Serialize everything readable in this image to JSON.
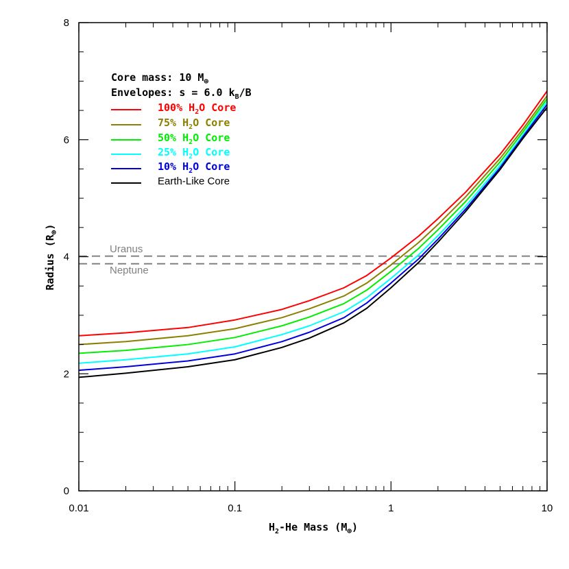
{
  "chart_data": {
    "type": "line",
    "xlabel": "H2-He Mass (M⊕)",
    "ylabel": "Radius (R⊕)",
    "xscale": "log",
    "xlim": [
      0.01,
      10
    ],
    "ylim": [
      0,
      8
    ],
    "xticks": [
      {
        "value": 0.01,
        "label": "0.01"
      },
      {
        "value": 0.1,
        "label": "0.1"
      },
      {
        "value": 1,
        "label": "1"
      },
      {
        "value": 10,
        "label": "10"
      }
    ],
    "yticks": [
      {
        "value": 0,
        "label": "0"
      },
      {
        "value": 2,
        "label": "2"
      },
      {
        "value": 4,
        "label": "4"
      },
      {
        "value": 6,
        "label": "6"
      },
      {
        "value": 8,
        "label": "8"
      }
    ],
    "annotations": {
      "core_mass": "Core mass: 10 M⊕",
      "envelopes": "Envelopes: s = 6.0 kB/B"
    },
    "legend_placement": "top-left",
    "x": [
      0.01,
      0.02,
      0.05,
      0.1,
      0.2,
      0.3,
      0.5,
      0.7,
      1,
      1.5,
      2,
      3,
      5,
      7,
      10
    ],
    "series": [
      {
        "name": "100% H2O Core",
        "color": "#ff0000",
        "values": [
          2.65,
          2.7,
          2.79,
          2.92,
          3.1,
          3.25,
          3.47,
          3.68,
          3.98,
          4.35,
          4.65,
          5.1,
          5.75,
          6.25,
          6.83
        ]
      },
      {
        "name": "75% H2O Core",
        "color": "#8b8000",
        "values": [
          2.5,
          2.55,
          2.65,
          2.77,
          2.96,
          3.11,
          3.33,
          3.55,
          3.86,
          4.24,
          4.55,
          5.02,
          5.68,
          6.18,
          6.75
        ]
      },
      {
        "name": "50% H2O Core",
        "color": "#00ee00",
        "values": [
          2.35,
          2.4,
          2.5,
          2.62,
          2.82,
          2.97,
          3.2,
          3.43,
          3.75,
          4.14,
          4.46,
          4.94,
          5.62,
          6.13,
          6.7
        ]
      },
      {
        "name": "25% H2O Core",
        "color": "#00ffff",
        "values": [
          2.18,
          2.24,
          2.34,
          2.46,
          2.67,
          2.82,
          3.06,
          3.3,
          3.63,
          4.03,
          4.36,
          4.86,
          5.56,
          6.08,
          6.65
        ]
      },
      {
        "name": "10% H2O Core",
        "color": "#0000dd",
        "values": [
          2.06,
          2.12,
          2.22,
          2.34,
          2.55,
          2.71,
          2.96,
          3.21,
          3.55,
          3.96,
          4.3,
          4.81,
          5.52,
          6.05,
          6.6
        ]
      },
      {
        "name": "Earth-Like Core",
        "color": "#000000",
        "values": [
          1.94,
          2.01,
          2.12,
          2.24,
          2.45,
          2.61,
          2.87,
          3.12,
          3.47,
          3.9,
          4.25,
          4.77,
          5.49,
          6.02,
          6.55
        ]
      }
    ],
    "reference_lines": [
      {
        "name": "Uranus",
        "value": 4.01,
        "color": "#808080"
      },
      {
        "name": "Neptune",
        "value": 3.88,
        "color": "#808080"
      }
    ]
  }
}
